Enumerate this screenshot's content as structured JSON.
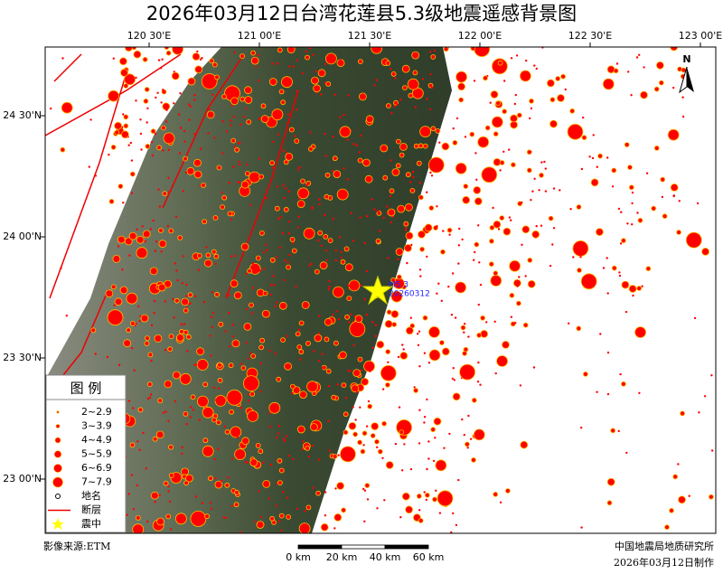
{
  "title": "2026年03月12日台湾花莲县5.3级地震遥感背景图",
  "map": {
    "lon_labels": [
      "120 30'E",
      "121 00'E",
      "121 30'E",
      "122 00'E",
      "122 30'E",
      "123 00'E"
    ],
    "lat_labels": [
      "24 30'N",
      "24 00'N",
      "23 30'N",
      "23 00'N"
    ],
    "north": "N",
    "epicenter": {
      "magnitude": "M5.3",
      "date": "20260312"
    }
  },
  "legend": {
    "title": "图 例",
    "items": [
      {
        "label": "2~2.9"
      },
      {
        "label": "3~3.9"
      },
      {
        "label": "4~4.9"
      },
      {
        "label": "5~5.9"
      },
      {
        "label": "6~6.9"
      },
      {
        "label": "7~7.9"
      },
      {
        "label": "地名"
      },
      {
        "label": "断层"
      },
      {
        "label": "震中"
      }
    ]
  },
  "footer": {
    "source": "影像来源:ETM",
    "scale": [
      "0 km",
      "20 km",
      "40 km",
      "60 km"
    ],
    "institute": "中国地震局地质研究所",
    "made": "2026年03月12日制作"
  }
}
